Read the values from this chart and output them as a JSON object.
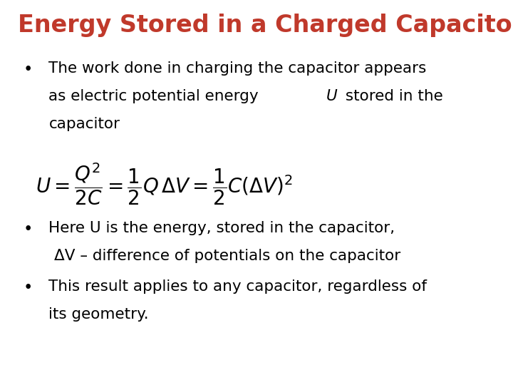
{
  "title": "Energy Stored in a Charged Capacitor",
  "title_color": "#C0392B",
  "title_fontsize": 24,
  "background_color": "#FFFFFF",
  "text_color": "#000000",
  "text_fontsize": 15.5,
  "formula_fontsize": 20,
  "bullet1_l1": "The work done in charging the capacitor appears",
  "bullet1_l2a": "as electric potential energy ",
  "bullet1_l2b": "U",
  "bullet1_l2c": " stored in the",
  "bullet1_l3": "capacitor",
  "formula": "$U = \\dfrac{Q^2}{2C} = \\dfrac{1}{2}Q\\,\\Delta V = \\dfrac{1}{2}C(\\Delta V)^2$",
  "bullet2_l1": "Here U is the energy, stored in the capacitor,",
  "bullet2_l2": "ΔV – difference of potentials on the capacitor",
  "bullet3_l1": "This result applies to any capacitor, regardless of",
  "bullet3_l2": "its geometry."
}
